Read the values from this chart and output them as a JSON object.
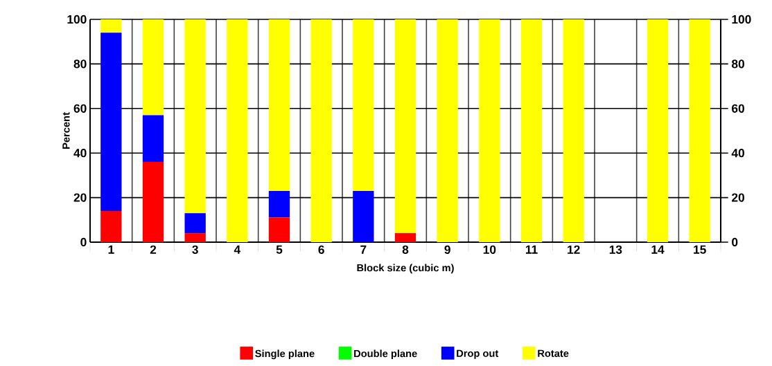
{
  "chart_data": {
    "type": "bar",
    "stacked": true,
    "xlabel": "Block size (cubic m)",
    "ylabel": "Percent",
    "categories": [
      "1",
      "2",
      "3",
      "4",
      "5",
      "6",
      "7",
      "8",
      "9",
      "10",
      "11",
      "12",
      "13",
      "14",
      "15"
    ],
    "series": [
      {
        "name": "Single plane",
        "color": "#ff0000",
        "values": [
          14,
          36,
          4,
          0,
          11,
          0,
          0,
          4,
          0,
          0,
          0,
          0,
          0,
          0,
          0
        ]
      },
      {
        "name": "Double plane",
        "color": "#00ff00",
        "values": [
          0,
          0,
          0,
          0,
          0,
          0,
          0,
          0,
          0,
          0,
          0,
          0,
          0,
          0,
          0
        ]
      },
      {
        "name": "Drop out",
        "color": "#0000ff",
        "values": [
          80,
          21,
          9,
          0,
          12,
          0,
          23,
          0,
          0,
          0,
          0,
          0,
          0,
          0,
          0
        ]
      },
      {
        "name": "Rotate",
        "color": "#ffff00",
        "values": [
          6,
          43,
          87,
          100,
          77,
          100,
          77,
          96,
          100,
          100,
          100,
          100,
          0,
          100,
          100
        ]
      }
    ],
    "ylim": [
      0,
      100
    ],
    "yticks": [
      0,
      20,
      40,
      60,
      80,
      100
    ],
    "y2lim": [
      0,
      100
    ],
    "y2ticks": [
      0,
      20,
      40,
      60,
      80,
      100
    ],
    "grid": true,
    "legend": "bottom"
  }
}
